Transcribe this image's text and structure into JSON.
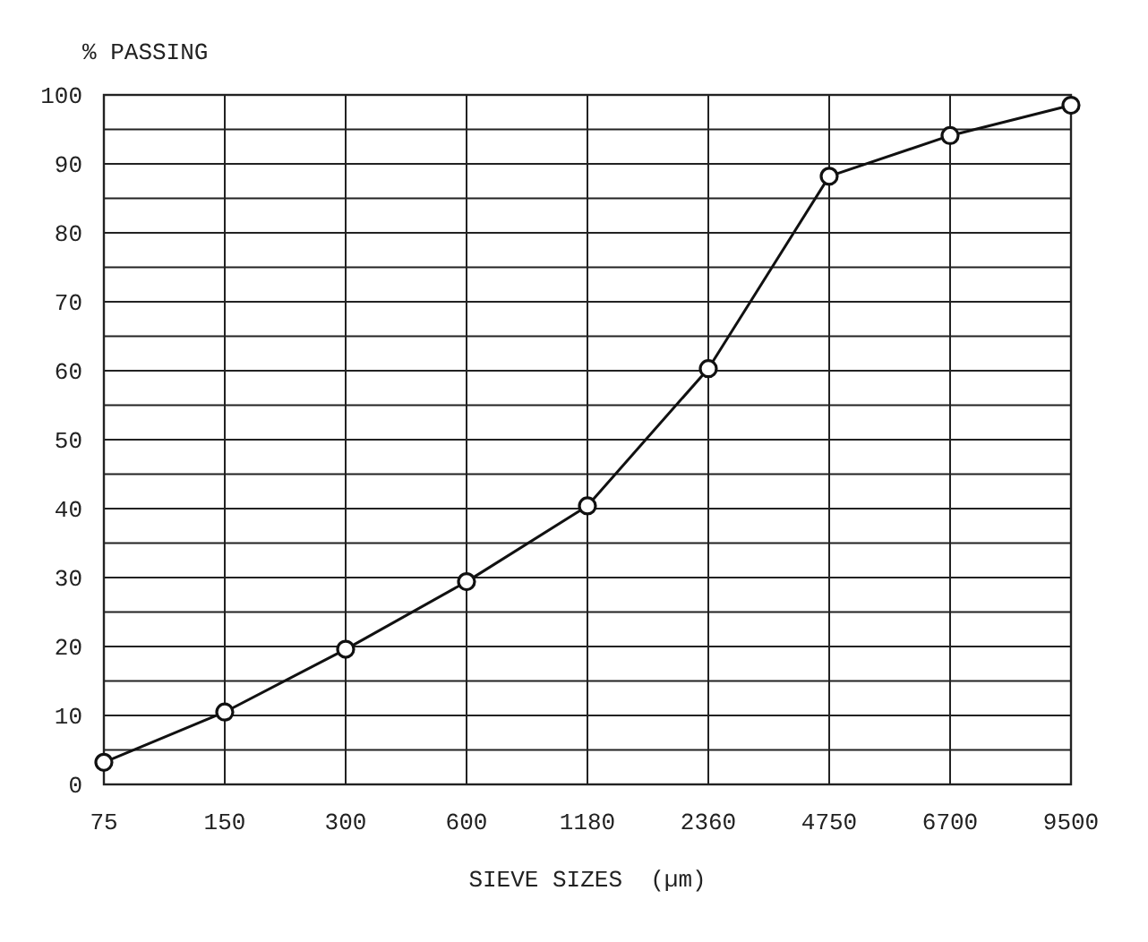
{
  "chart_data": {
    "type": "line",
    "ylabel": "% PASSING",
    "xlabel": "SIEVE SIZES  (µm)",
    "categories": [
      "75",
      "150",
      "300",
      "600",
      "1180",
      "2360",
      "4750",
      "6700",
      "9500"
    ],
    "series": [
      {
        "color": "#111111",
        "values": [
          3.2,
          10.5,
          19.6,
          29.4,
          40.4,
          60.3,
          88.2,
          94.1,
          98.5
        ]
      }
    ],
    "ylim": [
      0,
      100
    ],
    "yticks": [
      0,
      {
        "value": 5,
        "label": null
      },
      10,
      {
        "value": 15,
        "label": null
      },
      20,
      {
        "value": 25,
        "label": null
      },
      30,
      {
        "value": 35,
        "label": null
      },
      40,
      {
        "value": 45,
        "label": null
      },
      50,
      {
        "value": 55,
        "label": null
      },
      60,
      {
        "value": 65,
        "label": null
      },
      70,
      {
        "value": 75,
        "label": null
      },
      80,
      {
        "value": 85,
        "label": null
      },
      90,
      {
        "value": 95,
        "label": null
      },
      100
    ],
    "grid": true,
    "marker": "circle",
    "line_style": "solid"
  }
}
